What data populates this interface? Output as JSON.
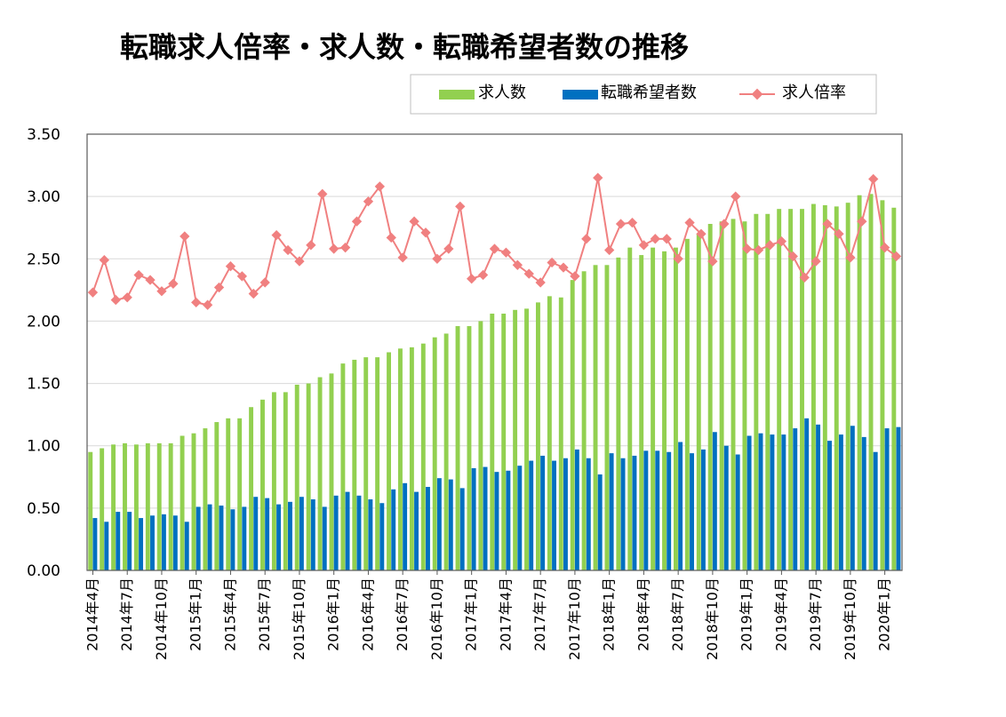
{
  "chart_data": {
    "type": "bar",
    "title": "転職求人倍率・求人数・転職希望者数の推移",
    "xlabel": "",
    "ylabel": "",
    "ylim": [
      0,
      3.5
    ],
    "yticks": [
      "0.00",
      "0.50",
      "1.00",
      "1.50",
      "2.00",
      "2.50",
      "3.00",
      "3.50"
    ],
    "grid": true,
    "legend_position": "top-right",
    "categories": [
      "2014年4月",
      "2014年5月",
      "2014年6月",
      "2014年7月",
      "2014年8月",
      "2014年9月",
      "2014年10月",
      "2014年11月",
      "2014年12月",
      "2015年1月",
      "2015年2月",
      "2015年3月",
      "2015年4月",
      "2015年5月",
      "2015年6月",
      "2015年7月",
      "2015年8月",
      "2015年9月",
      "2015年10月",
      "2015年11月",
      "2015年12月",
      "2016年1月",
      "2016年2月",
      "2016年3月",
      "2016年4月",
      "2016年5月",
      "2016年6月",
      "2016年7月",
      "2016年8月",
      "2016年9月",
      "2016年10月",
      "2016年11月",
      "2016年12月",
      "2017年1月",
      "2017年2月",
      "2017年3月",
      "2017年4月",
      "2017年5月",
      "2017年6月",
      "2017年7月",
      "2017年8月",
      "2017年9月",
      "2017年10月",
      "2017年11月",
      "2017年12月",
      "2018年1月",
      "2018年2月",
      "2018年3月",
      "2018年4月",
      "2018年5月",
      "2018年6月",
      "2018年7月",
      "2018年8月",
      "2018年9月",
      "2018年10月",
      "2018年11月",
      "2018年12月",
      "2019年1月",
      "2019年2月",
      "2019年3月",
      "2019年4月",
      "2019年5月",
      "2019年6月",
      "2019年7月",
      "2019年8月",
      "2019年9月",
      "2019年10月",
      "2019年11月",
      "2019年12月",
      "2020年1月",
      "2020年2月"
    ],
    "x_tick_labels": [
      {
        "index": 0,
        "label": "2014年4月"
      },
      {
        "index": 3,
        "label": "2014年7月"
      },
      {
        "index": 6,
        "label": "2014年10月"
      },
      {
        "index": 9,
        "label": "2015年1月"
      },
      {
        "index": 12,
        "label": "2015年4月"
      },
      {
        "index": 15,
        "label": "2015年7月"
      },
      {
        "index": 18,
        "label": "2015年10月"
      },
      {
        "index": 21,
        "label": "2016年1月"
      },
      {
        "index": 24,
        "label": "2016年4月"
      },
      {
        "index": 27,
        "label": "2016年7月"
      },
      {
        "index": 30,
        "label": "2016年10月"
      },
      {
        "index": 33,
        "label": "2017年1月"
      },
      {
        "index": 36,
        "label": "2017年4月"
      },
      {
        "index": 39,
        "label": "2017年7月"
      },
      {
        "index": 42,
        "label": "2017年10月"
      },
      {
        "index": 45,
        "label": "2018年1月"
      },
      {
        "index": 48,
        "label": "2018年4月"
      },
      {
        "index": 51,
        "label": "2018年7月"
      },
      {
        "index": 54,
        "label": "2018年10月"
      },
      {
        "index": 57,
        "label": "2019年1月"
      },
      {
        "index": 60,
        "label": "2019年4月"
      },
      {
        "index": 63,
        "label": "2019年7月"
      },
      {
        "index": 66,
        "label": "2019年10月"
      },
      {
        "index": 69,
        "label": "2020年1月"
      }
    ],
    "series": [
      {
        "name": "求人数",
        "kind": "bar",
        "color": "#92d050",
        "values": [
          0.95,
          0.98,
          1.01,
          1.02,
          1.01,
          1.02,
          1.02,
          1.02,
          1.08,
          1.1,
          1.14,
          1.19,
          1.22,
          1.22,
          1.31,
          1.37,
          1.43,
          1.43,
          1.49,
          1.5,
          1.55,
          1.58,
          1.66,
          1.69,
          1.71,
          1.71,
          1.75,
          1.78,
          1.79,
          1.82,
          1.87,
          1.9,
          1.96,
          1.96,
          2.0,
          2.06,
          2.06,
          2.09,
          2.1,
          2.15,
          2.2,
          2.19,
          2.33,
          2.4,
          2.45,
          2.45,
          2.51,
          2.59,
          2.53,
          2.59,
          2.56,
          2.59,
          2.66,
          2.7,
          2.78,
          2.8,
          2.82,
          2.8,
          2.86,
          2.86,
          2.9,
          2.9,
          2.9,
          2.94,
          2.93,
          2.92,
          2.95,
          3.01,
          3.02,
          2.97,
          2.91
        ]
      },
      {
        "name": "転職希望者数",
        "kind": "bar",
        "color": "#0070c0",
        "values": [
          0.42,
          0.39,
          0.47,
          0.47,
          0.42,
          0.44,
          0.45,
          0.44,
          0.39,
          0.51,
          0.53,
          0.52,
          0.49,
          0.51,
          0.59,
          0.58,
          0.53,
          0.55,
          0.59,
          0.57,
          0.51,
          0.6,
          0.63,
          0.6,
          0.57,
          0.54,
          0.65,
          0.7,
          0.63,
          0.67,
          0.74,
          0.73,
          0.66,
          0.82,
          0.83,
          0.79,
          0.8,
          0.84,
          0.88,
          0.92,
          0.88,
          0.9,
          0.97,
          0.9,
          0.77,
          0.94,
          0.9,
          0.92,
          0.96,
          0.96,
          0.95,
          1.03,
          0.94,
          0.97,
          1.11,
          1.0,
          0.93,
          1.08,
          1.1,
          1.09,
          1.09,
          1.14,
          1.22,
          1.17,
          1.04,
          1.09,
          1.16,
          1.07,
          0.95,
          1.14,
          1.15
        ]
      },
      {
        "name": "求人倍率",
        "kind": "line",
        "color": "#f08080",
        "values": [
          2.23,
          2.49,
          2.17,
          2.19,
          2.37,
          2.33,
          2.24,
          2.3,
          2.68,
          2.15,
          2.13,
          2.27,
          2.44,
          2.36,
          2.22,
          2.31,
          2.69,
          2.57,
          2.48,
          2.61,
          3.02,
          2.58,
          2.59,
          2.8,
          2.96,
          3.08,
          2.67,
          2.51,
          2.8,
          2.71,
          2.5,
          2.58,
          2.92,
          2.34,
          2.37,
          2.58,
          2.55,
          2.45,
          2.38,
          2.31,
          2.47,
          2.43,
          2.36,
          2.66,
          3.15,
          2.57,
          2.78,
          2.79,
          2.61,
          2.66,
          2.66,
          2.5,
          2.79,
          2.7,
          2.48,
          2.78,
          3.0,
          2.58,
          2.57,
          2.61,
          2.64,
          2.52,
          2.35,
          2.48,
          2.78,
          2.7,
          2.51,
          2.8,
          3.14,
          2.59,
          2.52
        ]
      }
    ]
  }
}
